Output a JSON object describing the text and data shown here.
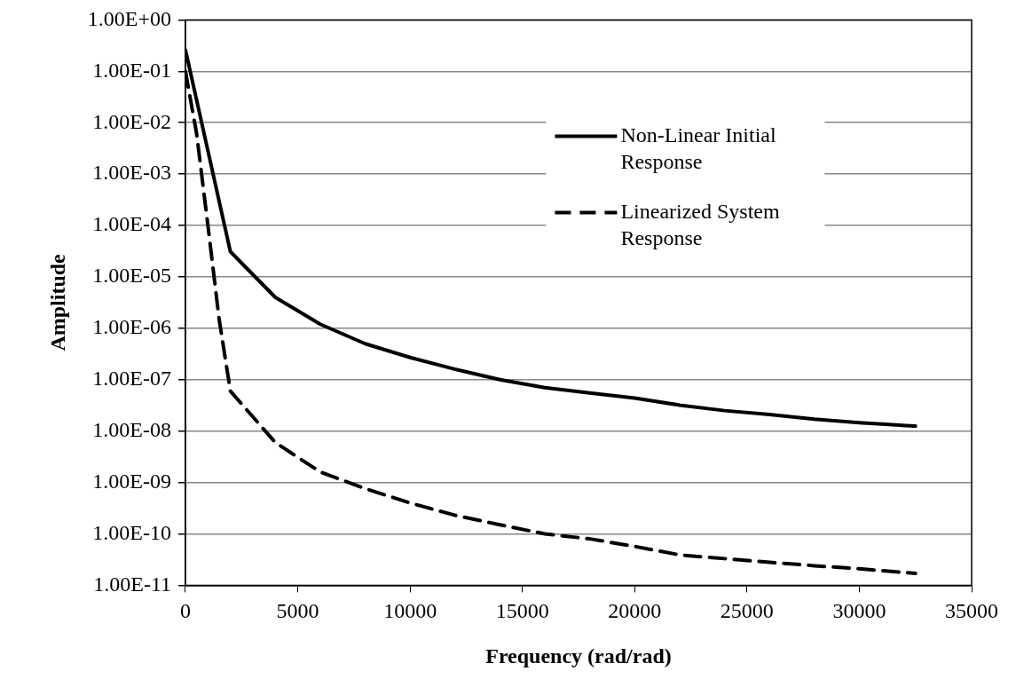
{
  "chart_data": {
    "type": "line",
    "xlabel": "Frequency (rad/rad)",
    "ylabel": "Amplitude",
    "log": "y",
    "grid": "y",
    "legend": "top right",
    "marker": "none",
    "xlim": [
      0,
      35000
    ],
    "xticks": [
      0,
      5000,
      10000,
      15000,
      20000,
      25000,
      30000,
      35000
    ],
    "ylim": [
      1e-11,
      1
    ],
    "yticks": [
      {
        "value": 1,
        "label": "1.00E+00"
      },
      {
        "value": 0.1,
        "label": "1.00E-01"
      },
      {
        "value": 0.01,
        "label": "1.00E-02"
      },
      {
        "value": 0.001,
        "label": "1.00E-03"
      },
      {
        "value": 0.0001,
        "label": "1.00E-04"
      },
      {
        "value": 1e-05,
        "label": "1.00E-05"
      },
      {
        "value": 1e-06,
        "label": "1.00E-06"
      },
      {
        "value": 1e-07,
        "label": "1.00E-07"
      },
      {
        "value": 1e-08,
        "label": "1.00E-08"
      },
      {
        "value": 1e-09,
        "label": "1.00E-09"
      },
      {
        "value": 1e-10,
        "label": "1.00E-10"
      },
      {
        "value": 1e-11,
        "label": "1.00E-11"
      }
    ],
    "series": [
      {
        "name": "Non-Linear Initial Response",
        "color": "#000000",
        "line_style": "solid",
        "x": [
          0,
          2000,
          4000,
          6000,
          8000,
          10000,
          12000,
          14000,
          16000,
          18000,
          20000,
          22000,
          24000,
          26000,
          28000,
          30000,
          32500
        ],
        "values": [
          0.26,
          3.1e-05,
          4e-06,
          1.2e-06,
          5e-07,
          2.7e-07,
          1.6e-07,
          1e-07,
          7e-08,
          5.5e-08,
          4.4e-08,
          3.2e-08,
          2.5e-08,
          2.1e-08,
          1.7e-08,
          1.45e-08,
          1.25e-08
        ]
      },
      {
        "name": "Linearized System Response",
        "color": "#000000",
        "line_style": "dashed",
        "x": [
          0,
          500,
          1000,
          1500,
          2000,
          4000,
          6000,
          8000,
          10000,
          12000,
          14000,
          16000,
          18000,
          20000,
          22000,
          24000,
          26000,
          28000,
          30000,
          32500
        ],
        "values": [
          0.1,
          0.006,
          0.0001,
          1.5e-06,
          6e-08,
          6e-09,
          1.6e-09,
          7.6e-10,
          4e-10,
          2.3e-10,
          1.5e-10,
          1e-10,
          8e-11,
          5.7e-11,
          3.9e-11,
          3.3e-11,
          2.8e-11,
          2.4e-11,
          2.1e-11,
          1.7e-11
        ]
      }
    ]
  }
}
